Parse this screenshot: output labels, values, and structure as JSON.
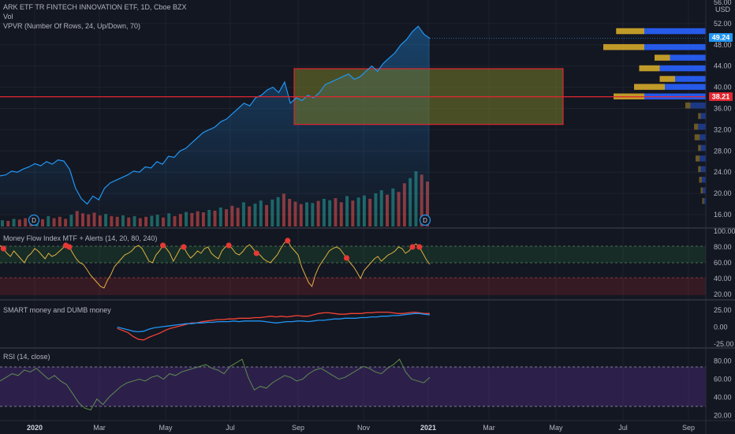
{
  "header": {
    "symbol_line": "ARK ETF TR FINTECH INNOVATION ETF, 1D, Cboe BZX",
    "vol_label": "Vol",
    "vpvr_label": "VPVR (Number Of Rows, 24, Up/Down, 70)",
    "currency": "USD"
  },
  "panes": {
    "mfi_label": "Money Flow Index MTF + Alerts (14, 20, 80, 240)",
    "smart_label": "SMART money and DUMB money",
    "rsi_label": "RSI (14, close)"
  },
  "badges": {
    "dividend": "D"
  },
  "colors": {
    "background": "#131722",
    "price_line": "#2196f3",
    "mfi_line": "#e0b040",
    "smart_line": "#f44336",
    "dumb_line": "#2196f3",
    "rsi_line": "#5f8a4f",
    "vp_up": "#2962ff",
    "vp_down": "#d4a82a",
    "zone_stroke": "#e0262f",
    "hline": "#e0262f"
  },
  "chart_data": [
    {
      "type": "line",
      "pane": "price",
      "title": "ARK ETF TR FINTECH INNOVATION ETF, 1D, Cboe BZX",
      "x_ticks": [
        "2020",
        "Mar",
        "May",
        "Jul",
        "Sep",
        "Nov",
        "2021",
        "Mar",
        "May",
        "Jul",
        "Sep"
      ],
      "y_ticks": [
        "56.00",
        "52.00",
        "48.00",
        "44.00",
        "40.00",
        "36.00",
        "32.00",
        "28.00",
        "24.00",
        "20.00",
        "16.00"
      ],
      "ylim": [
        16,
        56
      ],
      "last_price_label": "49.24",
      "hline_label": "38.21",
      "hline_value": 38.21,
      "series": [
        {
          "values": [
            23.3,
            23.5,
            24.2,
            24.0,
            24.6,
            25.0,
            25.6,
            25.2,
            26.0,
            25.5,
            26.3,
            26.1,
            24.5,
            21.0,
            19.0,
            18.0,
            19.5,
            18.8,
            21.0,
            22.0,
            22.5,
            23.0,
            23.5,
            24.2,
            24.0,
            25.0,
            24.8,
            26.0,
            25.5,
            27.0,
            26.8,
            28.0,
            28.5,
            29.5,
            30.5,
            31.5,
            32.0,
            32.5,
            33.5,
            34.0,
            35.0,
            36.0,
            37.0,
            36.5,
            38.0,
            38.5,
            39.5,
            40.0,
            39.0,
            41.0,
            37.0,
            38.0,
            37.5,
            38.5,
            38.0,
            39.0,
            40.5,
            41.0,
            41.5,
            42.0,
            42.5,
            41.5,
            42.0,
            43.0,
            44.0,
            43.0,
            44.5,
            45.5,
            46.5,
            48.0,
            49.0,
            50.5,
            51.5,
            50.0,
            49.2
          ]
        }
      ],
      "zone": {
        "y_low": 33.0,
        "y_high": 43.5
      },
      "volume_values": [
        1.8,
        1.6,
        2.2,
        2.0,
        2.4,
        1.9,
        2.6,
        2.1,
        3.0,
        2.4,
        2.8,
        2.2,
        3.4,
        4.5,
        3.8,
        3.5,
        4.0,
        3.2,
        3.6,
        3.0,
        2.8,
        3.2,
        2.6,
        3.0,
        2.4,
        2.8,
        3.1,
        3.4,
        2.6,
        3.8,
        3.0,
        3.6,
        4.2,
        3.9,
        4.4,
        4.1,
        4.8,
        4.6,
        5.5,
        5.0,
        6.0,
        5.4,
        7.0,
        5.8,
        6.6,
        7.5,
        6.2,
        7.8,
        8.5,
        9.5,
        8.0,
        7.2,
        6.5,
        7.0,
        6.8,
        7.4,
        8.0,
        7.6,
        8.2,
        7.0,
        8.8,
        7.5,
        8.4,
        9.0,
        8.0,
        9.6,
        10.5,
        9.2,
        11.0,
        10.0,
        12.5,
        14.0,
        16.0,
        15.0,
        13.0
      ],
      "profile": [
        {
          "price": 50.5,
          "up": 5.5,
          "down": 12
        },
        {
          "price": 47.5,
          "up": 8,
          "down": 12
        },
        {
          "price": 45.5,
          "up": 3,
          "down": 7
        },
        {
          "price": 43.5,
          "up": 4,
          "down": 9
        },
        {
          "price": 41.5,
          "up": 3,
          "down": 6
        },
        {
          "price": 40.0,
          "up": 6,
          "down": 8
        },
        {
          "price": 38.2,
          "up": 6,
          "down": 12
        },
        {
          "price": 36.5,
          "up": 1,
          "down": 3
        },
        {
          "price": 34.5,
          "up": 0.5,
          "down": 1
        },
        {
          "price": 32.5,
          "up": 0.8,
          "down": 1.5
        },
        {
          "price": 30.5,
          "up": 1.0,
          "down": 1.2
        },
        {
          "price": 28.5,
          "up": 0.5,
          "down": 1
        },
        {
          "price": 26.5,
          "up": 0.8,
          "down": 1.2
        },
        {
          "price": 24.5,
          "up": 0.5,
          "down": 1.0
        },
        {
          "price": 22.5,
          "up": 0.5,
          "down": 0.8
        },
        {
          "price": 20.5,
          "up": 0.4,
          "down": 0.6
        },
        {
          "price": 18.5,
          "up": 0.3,
          "down": 0.4
        }
      ]
    },
    {
      "type": "line",
      "pane": "mfi",
      "title": "Money Flow Index MTF + Alerts (14, 20, 80, 240)",
      "ylim": [
        15,
        100
      ],
      "y_ticks": [
        "100.00",
        "80.00",
        "60.00",
        "40.00",
        "20.00"
      ],
      "series": [
        {
          "values": [
            82,
            78,
            72,
            68,
            75,
            70,
            65,
            60,
            68,
            72,
            78,
            75,
            70,
            65,
            72,
            68,
            70,
            74,
            78,
            82,
            80,
            72,
            65,
            60,
            58,
            52,
            45,
            40,
            35,
            30,
            28,
            38,
            45,
            55,
            60,
            65,
            70,
            72,
            75,
            80,
            82,
            78,
            70,
            62,
            60,
            70,
            75,
            82,
            78,
            72,
            62,
            70,
            78,
            80,
            72,
            66,
            70,
            75,
            72,
            78,
            80,
            72,
            68,
            65,
            75,
            80,
            82,
            78,
            72,
            70,
            74,
            80,
            83,
            78,
            72,
            70,
            65,
            62,
            60,
            65,
            70,
            78,
            85,
            88,
            80,
            75,
            70,
            55,
            45,
            35,
            30,
            45,
            55,
            62,
            68,
            75,
            78,
            80,
            78,
            72,
            66,
            60,
            55,
            48,
            40,
            50,
            55,
            60,
            65,
            68,
            62,
            66,
            70,
            72,
            75,
            80,
            78,
            72,
            75,
            80,
            84,
            80,
            72,
            64,
            58
          ]
        }
      ],
      "alert_indices": [
        1,
        19,
        20,
        47,
        53,
        66,
        74,
        83,
        100,
        119,
        121
      ],
      "upper": 80,
      "lower": 20
    },
    {
      "type": "line",
      "pane": "smart-dumb",
      "title": "SMART money and DUMB money",
      "ylim": [
        -25,
        25
      ],
      "y_ticks": [
        "25.00",
        "0.00",
        "-25.00"
      ],
      "series": [
        {
          "name": "",
          "values": [
            null,
            null,
            null,
            null,
            null,
            null,
            null,
            null,
            -2,
            -5,
            -8,
            -14,
            -18,
            -19,
            -15,
            -12,
            -9,
            -5,
            -2,
            0,
            2,
            4,
            6,
            6,
            8,
            9,
            10,
            11,
            11,
            12,
            12,
            13,
            13,
            13,
            14,
            14,
            15,
            16,
            15,
            16,
            15,
            16,
            17,
            16,
            16,
            18,
            20,
            21,
            21,
            20,
            19,
            19,
            20,
            20,
            20,
            21,
            21,
            22,
            22,
            22,
            21,
            20,
            20,
            21,
            22,
            21,
            20,
            20
          ]
        },
        {
          "name": "",
          "values": [
            null,
            null,
            null,
            null,
            null,
            null,
            null,
            null,
            0,
            -2,
            -4,
            -6,
            -7,
            -6,
            -3,
            -1,
            0,
            1,
            2,
            3,
            4,
            5,
            5,
            6,
            6,
            7,
            7,
            8,
            8,
            8,
            9,
            8,
            9,
            9,
            9,
            9,
            8,
            7,
            6,
            7,
            8,
            8,
            9,
            9,
            8,
            9,
            10,
            10,
            11,
            12,
            12,
            13,
            13,
            13,
            14,
            14,
            15,
            15,
            16,
            16,
            17,
            17,
            18,
            19,
            20,
            20,
            19,
            18
          ]
        }
      ]
    },
    {
      "type": "line",
      "pane": "rsi",
      "title": "RSI (14, close)",
      "ylim": [
        16,
        90
      ],
      "y_ticks": [
        "80.00",
        "60.00",
        "40.00",
        "20.00"
      ],
      "series": [
        {
          "values": [
            58,
            62,
            66,
            64,
            70,
            68,
            72,
            66,
            60,
            64,
            58,
            54,
            44,
            34,
            28,
            26,
            38,
            32,
            40,
            46,
            52,
            56,
            58,
            60,
            58,
            62,
            64,
            60,
            66,
            64,
            68,
            70,
            72,
            74,
            76,
            72,
            70,
            66,
            74,
            78,
            82,
            62,
            48,
            52,
            50,
            56,
            60,
            64,
            62,
            58,
            60,
            66,
            70,
            72,
            68,
            64,
            60,
            62,
            66,
            70,
            74,
            72,
            68,
            66,
            72,
            76,
            82,
            68,
            60,
            58,
            56,
            62
          ]
        }
      ],
      "upper": 70,
      "lower": 30
    }
  ]
}
